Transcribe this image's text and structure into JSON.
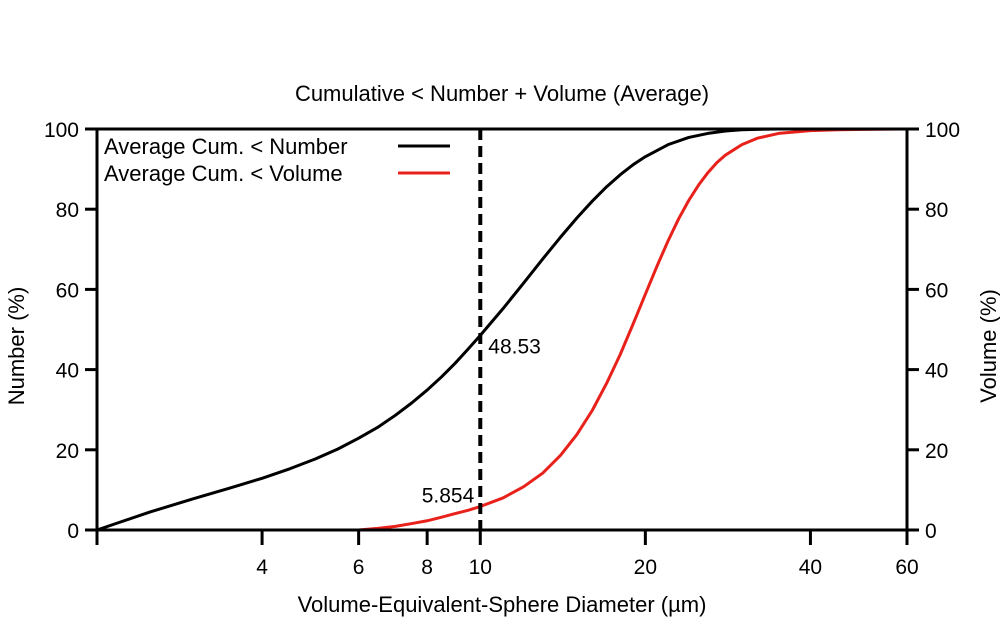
{
  "chart_data": {
    "type": "line",
    "title": "Cumulative < Number + Volume (Average)",
    "xlabel": "Volume-Equivalent-Sphere Diameter (µm)",
    "ylabel_left": "Number (%)",
    "ylabel_right": "Volume (%)",
    "x_scale": "log",
    "xlim": [
      2,
      60
    ],
    "ylim": [
      0,
      100
    ],
    "x_ticks": [
      4,
      6,
      8,
      10,
      20,
      40,
      60
    ],
    "y_ticks": [
      0,
      20,
      40,
      60,
      80,
      100
    ],
    "grid": false,
    "legend_position": "top-left",
    "series": [
      {
        "name": "Average Cum. < Number",
        "color": "#000000",
        "axis": "left",
        "x": [
          2,
          2.5,
          3,
          3.5,
          4,
          4.5,
          5,
          5.5,
          6,
          6.5,
          7,
          7.5,
          8,
          8.5,
          9,
          9.5,
          10,
          11,
          12,
          13,
          14,
          15,
          16,
          17,
          18,
          19,
          20,
          22,
          24,
          26,
          28,
          30,
          32,
          35,
          40,
          50,
          60
        ],
        "y": [
          0,
          4.5,
          7.8,
          10.5,
          12.9,
          15.3,
          17.7,
          20.2,
          22.9,
          25.6,
          28.6,
          31.7,
          34.9,
          38.2,
          41.6,
          45.1,
          48.53,
          55.2,
          61.6,
          67.6,
          73.0,
          77.8,
          82.0,
          85.6,
          88.6,
          91.1,
          93.1,
          96.1,
          97.9,
          98.9,
          99.5,
          99.8,
          99.9,
          100,
          100,
          100,
          100
        ]
      },
      {
        "name": "Average Cum. < Volume",
        "color": "#e8211b",
        "axis": "right",
        "x": [
          6,
          6.5,
          7,
          7.5,
          8,
          8.5,
          9,
          9.5,
          10,
          11,
          12,
          13,
          14,
          15,
          16,
          17,
          18,
          19,
          20,
          21,
          22,
          23,
          24,
          25,
          26,
          27,
          28,
          30,
          32,
          35,
          40,
          45,
          50,
          60
        ],
        "y": [
          0,
          0.4,
          0.9,
          1.6,
          2.3,
          3.2,
          4.1,
          4.9,
          5.854,
          8.0,
          10.8,
          14.2,
          18.6,
          23.8,
          29.8,
          36.6,
          43.8,
          51.4,
          58.8,
          65.8,
          72.1,
          77.6,
          82.2,
          86.0,
          89.1,
          91.6,
          93.5,
          96.1,
          97.7,
          98.9,
          99.6,
          99.8,
          99.9,
          100
        ]
      }
    ],
    "annotations": {
      "vline_x": 10,
      "number_label": "48.53",
      "volume_label": "5.854"
    }
  }
}
